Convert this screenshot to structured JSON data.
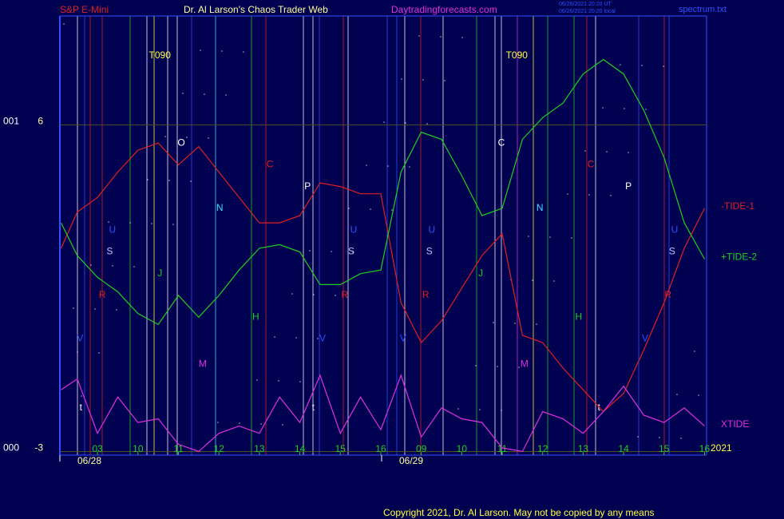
{
  "chart_data": {
    "type": "line",
    "instrument": "S&P E-Mini",
    "title": "Dr. Al Larson's Chaos Trader Web",
    "site": "Daytradingforecasts.com",
    "timestamps": [
      "06/26/2021 20:20 UT",
      "06/26/2021 20:20 local"
    ],
    "file": "spectrum.txt",
    "copyright": "Copyright 2021, Dr. Al Larson. May not be copied by any means",
    "year": "2021",
    "xlim": [
      -0.93,
      15.05
    ],
    "ylim": [
      -3.1,
      9.0
    ],
    "yticks": [
      6,
      -3
    ],
    "left_labels": [
      "001",
      "000"
    ],
    "grid": true,
    "xticks": [
      {
        "value": 0,
        "label": "03"
      },
      {
        "value": 1,
        "label": "10"
      },
      {
        "value": 2,
        "label": "11"
      },
      {
        "value": 3,
        "label": "12"
      },
      {
        "value": 4,
        "label": "13"
      },
      {
        "value": 5,
        "label": "14"
      },
      {
        "value": 6,
        "label": "15"
      },
      {
        "value": 7,
        "label": "16"
      },
      {
        "value": 8,
        "label": "09"
      },
      {
        "value": 9,
        "label": "10"
      },
      {
        "value": 10,
        "label": "11"
      },
      {
        "value": 11,
        "label": "12"
      },
      {
        "value": 12,
        "label": "13"
      },
      {
        "value": 13,
        "label": "14"
      },
      {
        "value": 14,
        "label": "15"
      },
      {
        "value": 15,
        "label": "16"
      }
    ],
    "dates": [
      {
        "value": -0.93,
        "label": "06/28"
      },
      {
        "value": 7.02,
        "label": "06/29"
      }
    ],
    "x": [
      -0.9,
      -0.5,
      0,
      0.5,
      1,
      1.5,
      2,
      2.5,
      3,
      3.5,
      4,
      4.5,
      5,
      5.5,
      6,
      6.5,
      7,
      7.5,
      8,
      8.5,
      9,
      9.5,
      10,
      10.5,
      11,
      11.5,
      12,
      12.5,
      13,
      13.5,
      14,
      14.5,
      15
    ],
    "series": [
      {
        "name": "-TIDE-1",
        "color": "#e02020",
        "values": [
          2.6,
          3.6,
          4.0,
          4.7,
          5.3,
          5.5,
          4.9,
          5.4,
          4.7,
          4.0,
          3.3,
          3.3,
          3.5,
          4.4,
          4.3,
          4.1,
          4.1,
          1.1,
          0.0,
          0.6,
          1.5,
          2.4,
          3.0,
          0.2,
          0.0,
          -0.7,
          -1.3,
          -1.9,
          -1.4,
          -0.2,
          1.1,
          2.6,
          3.7
        ]
      },
      {
        "name": "+TIDE-2",
        "color": "#20d020",
        "values": [
          3.3,
          2.4,
          1.8,
          1.4,
          0.8,
          0.5,
          1.3,
          0.7,
          1.3,
          2.0,
          2.6,
          2.7,
          2.5,
          1.6,
          1.6,
          1.9,
          2.0,
          4.7,
          5.8,
          5.6,
          4.6,
          3.5,
          3.7,
          5.6,
          6.2,
          6.6,
          7.4,
          7.8,
          7.4,
          6.4,
          5.1,
          3.3,
          2.3
        ]
      },
      {
        "name": "XTIDE",
        "color": "#e030e0",
        "values": [
          -1.3,
          -1.0,
          -2.5,
          -1.5,
          -2.2,
          -2.1,
          -2.8,
          -3.0,
          -2.5,
          -2.3,
          -2.5,
          -1.5,
          -2.2,
          -0.9,
          -2.5,
          -1.5,
          -2.4,
          -0.9,
          -2.6,
          -1.8,
          -2.1,
          -2.2,
          -2.9,
          -3.0,
          -1.9,
          -2.1,
          -2.5,
          -1.9,
          -1.2,
          -2.0,
          -2.2,
          -1.8,
          -2.3
        ]
      }
    ],
    "annotations": [
      {
        "label": "T090",
        "x": 1.54,
        "y": 7.9,
        "color": "#ffff40"
      },
      {
        "label": "T090",
        "x": 10.36,
        "y": 7.9,
        "color": "#ffff40"
      },
      {
        "label": "O",
        "x": 2.07,
        "y": 5.5,
        "color": "#ffffff"
      },
      {
        "label": "C",
        "x": 9.98,
        "y": 5.5,
        "color": "#ffffff"
      },
      {
        "label": "C",
        "x": 4.26,
        "y": 4.9,
        "color": "#e02020"
      },
      {
        "label": "C",
        "x": 12.19,
        "y": 4.9,
        "color": "#e02020"
      },
      {
        "label": "P",
        "x": 5.19,
        "y": 4.3,
        "color": "#ffffff"
      },
      {
        "label": "P",
        "x": 13.12,
        "y": 4.3,
        "color": "#ffffff"
      },
      {
        "label": "N",
        "x": 3.02,
        "y": 3.7,
        "color": "#40e0ff"
      },
      {
        "label": "N",
        "x": 10.93,
        "y": 3.7,
        "color": "#40e0ff"
      },
      {
        "label": "U",
        "x": 0.37,
        "y": 3.1,
        "color": "#3050ff"
      },
      {
        "label": "U",
        "x": 6.33,
        "y": 3.1,
        "color": "#3050ff"
      },
      {
        "label": "U",
        "x": 8.26,
        "y": 3.1,
        "color": "#3050ff"
      },
      {
        "label": "U",
        "x": 14.26,
        "y": 3.1,
        "color": "#3050ff"
      },
      {
        "label": "S",
        "x": 0.3,
        "y": 2.5,
        "color": "#c0c0ff"
      },
      {
        "label": "S",
        "x": 6.27,
        "y": 2.5,
        "color": "#c0c0ff"
      },
      {
        "label": "S",
        "x": 8.2,
        "y": 2.5,
        "color": "#c0c0ff"
      },
      {
        "label": "S",
        "x": 14.2,
        "y": 2.5,
        "color": "#c0c0ff"
      },
      {
        "label": "J",
        "x": 1.54,
        "y": 1.9,
        "color": "#20d020"
      },
      {
        "label": "J",
        "x": 9.47,
        "y": 1.9,
        "color": "#20d020"
      },
      {
        "label": "R",
        "x": 0.12,
        "y": 1.3,
        "color": "#e02020"
      },
      {
        "label": "R",
        "x": 6.11,
        "y": 1.3,
        "color": "#e02020"
      },
      {
        "label": "R",
        "x": 8.11,
        "y": 1.3,
        "color": "#e02020"
      },
      {
        "label": "R",
        "x": 14.1,
        "y": 1.3,
        "color": "#e02020"
      },
      {
        "label": "H",
        "x": 3.91,
        "y": 0.7,
        "color": "#20d020"
      },
      {
        "label": "H",
        "x": 11.89,
        "y": 0.7,
        "color": "#20d020"
      },
      {
        "label": "V",
        "x": -0.43,
        "y": 0.1,
        "color": "#3050ff"
      },
      {
        "label": "V",
        "x": 5.56,
        "y": 0.1,
        "color": "#3050ff"
      },
      {
        "label": "V",
        "x": 7.55,
        "y": 0.1,
        "color": "#3050ff"
      },
      {
        "label": "V",
        "x": 13.53,
        "y": 0.1,
        "color": "#3050ff"
      },
      {
        "label": "M",
        "x": 2.6,
        "y": -0.6,
        "color": "#e030e0"
      },
      {
        "label": "M",
        "x": 10.55,
        "y": -0.6,
        "color": "#e030e0"
      },
      {
        "label": "t",
        "x": -0.41,
        "y": -1.8,
        "color": "#ffffff"
      },
      {
        "label": "t",
        "x": 5.33,
        "y": -1.8,
        "color": "#ffffff"
      },
      {
        "label": "t",
        "x": 12.39,
        "y": -1.8,
        "color": "#ffffff"
      }
    ]
  }
}
